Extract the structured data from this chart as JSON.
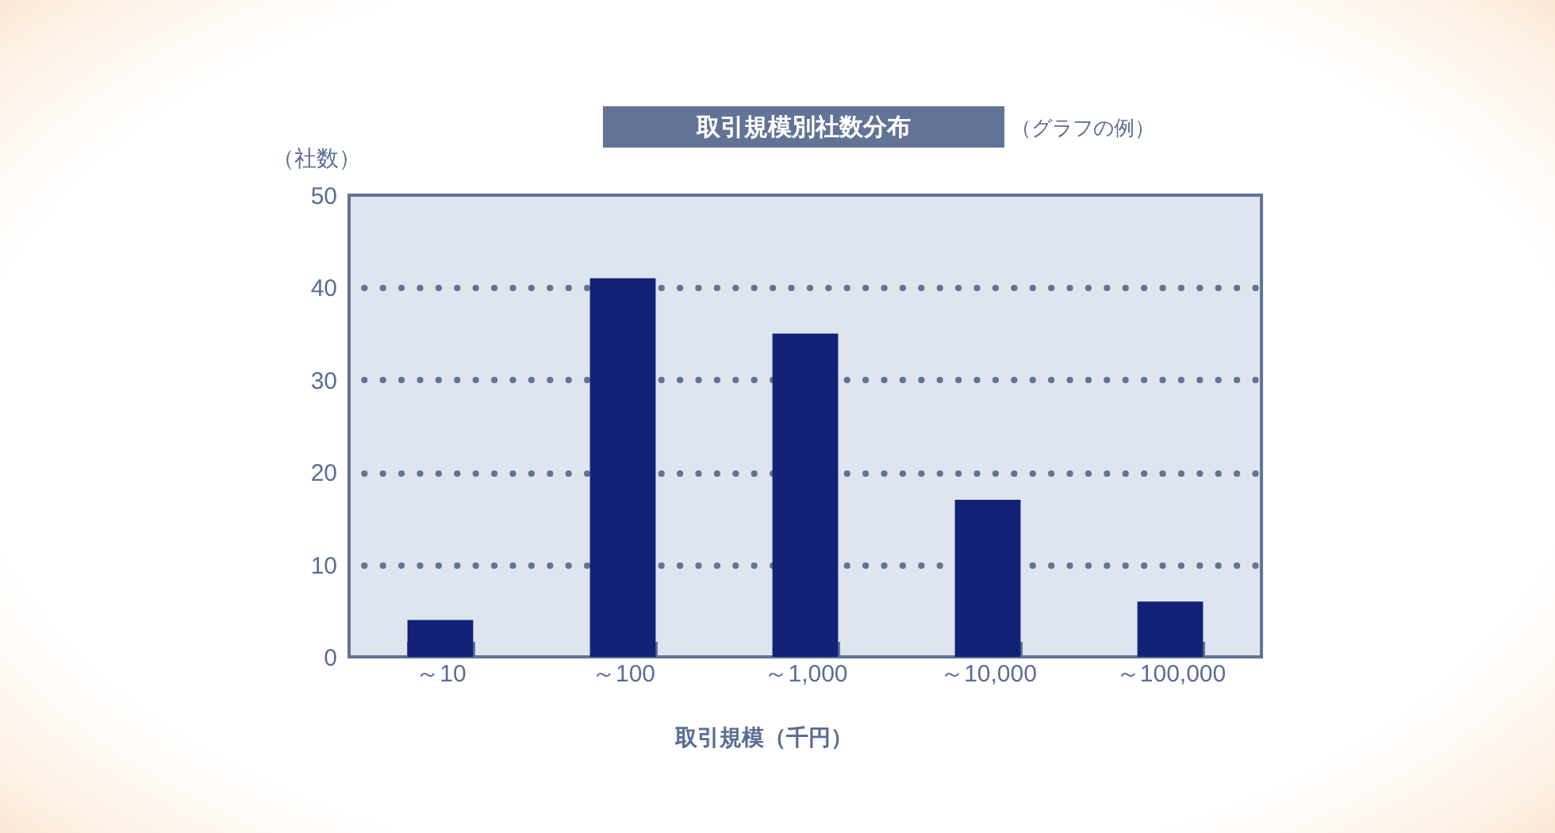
{
  "chart_data": {
    "type": "bar",
    "title": "取引規模別社数分布",
    "subtitle": "（グラフの例）",
    "xlabel": "取引規模（千円）",
    "ylabel": "（社数）",
    "categories": [
      "～10",
      "～100",
      "～1,000",
      "～10,000",
      "～100,000"
    ],
    "values": [
      4,
      41,
      35,
      17,
      6
    ],
    "color": "#112277",
    "ylim": [
      0,
      50
    ],
    "yticks": [
      0,
      10,
      20,
      30,
      40,
      50
    ],
    "grid": "y"
  }
}
